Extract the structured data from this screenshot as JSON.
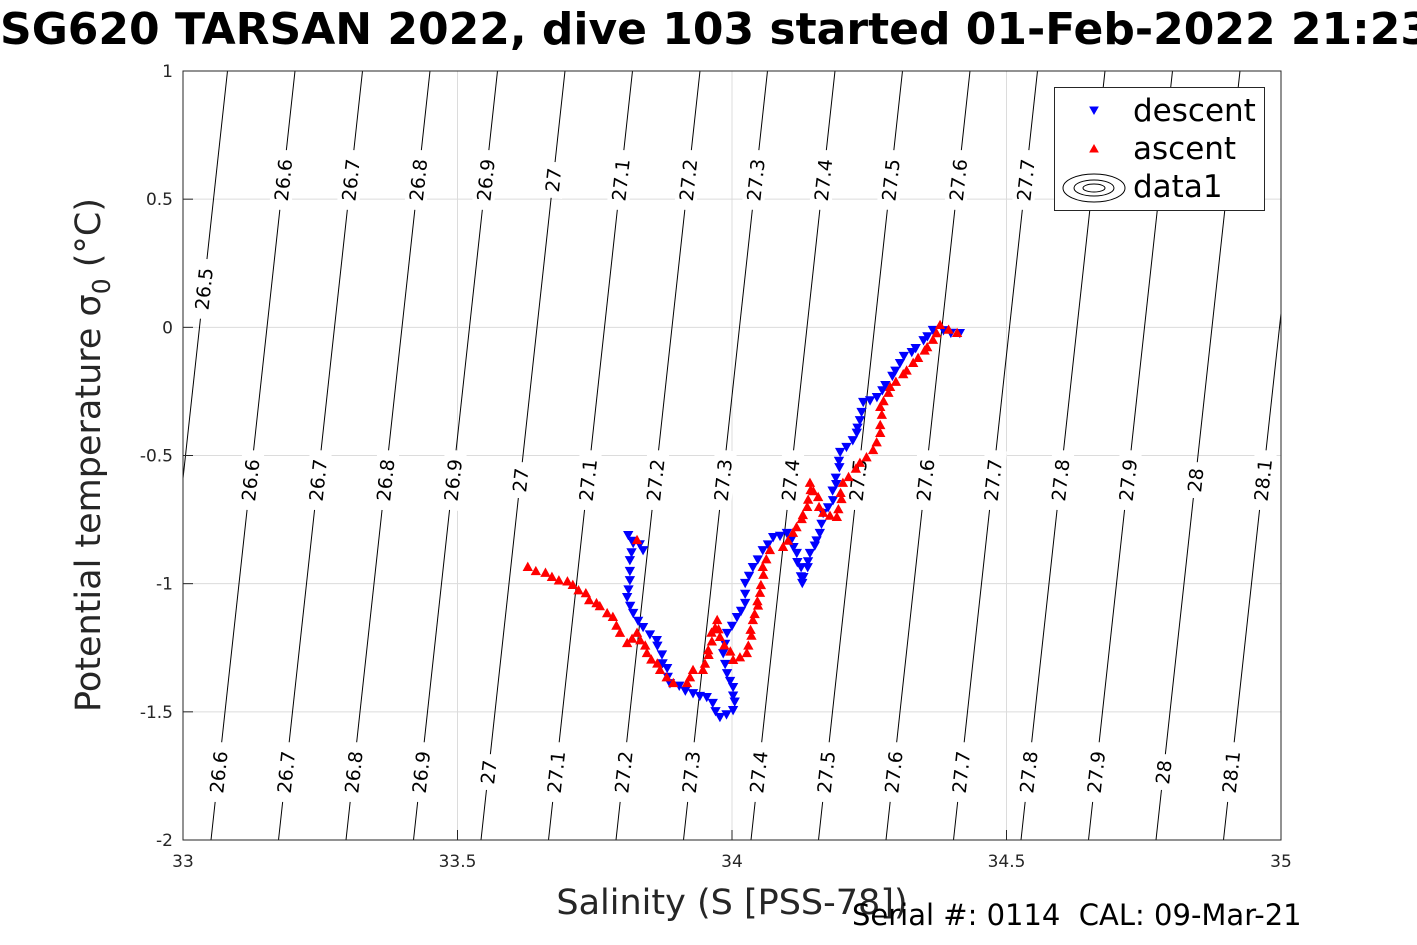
{
  "title": "SG620 TARSAN 2022, dive 103 started 01-Feb-2022 21:23",
  "footer": "Serial #: 0114  CAL: 09-Mar-21",
  "chart_data": {
    "type": "scatter",
    "title": "SG620 TARSAN 2022, dive 103 started 01-Feb-2022 21:23",
    "xlabel": "Salinity (S [PSS-78])",
    "ylabel_main": "Potential temperature ",
    "ylabel_sigma": "σ",
    "ylabel_sub": "0",
    "ylabel_unit": " (°C)",
    "xlim": [
      33,
      35
    ],
    "ylim": [
      -2,
      1
    ],
    "xticks": [
      33,
      33.5,
      34,
      34.5,
      35
    ],
    "xtick_labels": [
      "33",
      "33.5",
      "34",
      "34.5",
      "35"
    ],
    "yticks": [
      -2,
      -1.5,
      -1,
      -0.5,
      0,
      0.5,
      1
    ],
    "ytick_labels": [
      "-2",
      "-1.5",
      "-1",
      "-0.5",
      "0",
      "0.5",
      "1"
    ],
    "grid": true,
    "legend": {
      "placement": "top-right",
      "entries": [
        {
          "label": "descent",
          "color": "#0000ff",
          "marker": "triangle-down"
        },
        {
          "label": "ascent",
          "color": "#ff0000",
          "marker": "triangle-up"
        },
        {
          "label": "data1",
          "color": "#000000",
          "marker": "contour"
        }
      ]
    },
    "contours": {
      "name": "sigma0 isopycnals",
      "levels": [
        26.5,
        26.6,
        26.7,
        26.8,
        26.9,
        27,
        27.1,
        27.2,
        27.3,
        27.4,
        27.5,
        27.6,
        27.7,
        27.8,
        27.9,
        28,
        28.1
      ],
      "level_labels": [
        "26.5",
        "26.6",
        "26.7",
        "26.8",
        "26.9",
        "27",
        "27.1",
        "27.2",
        "27.3",
        "27.4",
        "27.5",
        "27.6",
        "27.7",
        "27.8",
        "27.9",
        "28",
        "28.1"
      ],
      "label_rows": [
        {
          "temperature": 0.575,
          "levels": [
            "26.6",
            "26.7",
            "26.8",
            "26.9",
            "27",
            "27.1",
            "27.2",
            "27.3",
            "27.4",
            "27.5",
            "27.6",
            "27.7"
          ]
        },
        {
          "temperature": 0.15,
          "levels": [
            "26.5"
          ]
        },
        {
          "temperature": -0.596,
          "levels": [
            "26.6",
            "26.7",
            "26.8",
            "26.9",
            "27",
            "27.1",
            "27.2",
            "27.3",
            "27.4",
            "27.5",
            "27.6",
            "27.7",
            "27.8",
            "27.9",
            "28",
            "28.1"
          ]
        },
        {
          "temperature": -1.735,
          "levels": [
            "26.6",
            "26.7",
            "26.8",
            "26.9",
            "27",
            "27.1",
            "27.2",
            "27.3",
            "27.4",
            "27.5",
            "27.6",
            "27.7",
            "27.8",
            "27.9",
            "28",
            "28.1"
          ]
        }
      ]
    },
    "series": [
      {
        "name": "descent",
        "color": "#0000ff",
        "marker": "triangle-down",
        "points": [
          [
            34.415,
            -0.022
          ],
          [
            34.366,
            -0.01
          ],
          [
            34.306,
            -0.139
          ],
          [
            34.264,
            -0.272
          ],
          [
            34.239,
            -0.291
          ],
          [
            34.233,
            -0.362
          ],
          [
            34.22,
            -0.44
          ],
          [
            34.197,
            -0.486
          ],
          [
            34.184,
            -0.674
          ],
          [
            34.166,
            -0.724
          ],
          [
            34.16,
            -0.802
          ],
          [
            34.142,
            -0.88
          ],
          [
            34.128,
            -0.997
          ],
          [
            34.118,
            -0.88
          ],
          [
            34.1,
            -0.802
          ],
          [
            34.075,
            -0.818
          ],
          [
            34.056,
            -0.869
          ],
          [
            34.038,
            -0.935
          ],
          [
            34.024,
            -0.997
          ],
          [
            34.024,
            -1.075
          ],
          [
            34.009,
            -1.13
          ],
          [
            33.991,
            -1.192
          ],
          [
            33.984,
            -1.271
          ],
          [
            33.991,
            -1.349
          ],
          [
            34.002,
            -1.403
          ],
          [
            34.002,
            -1.493
          ],
          [
            33.978,
            -1.52
          ],
          [
            33.954,
            -1.442
          ],
          [
            33.929,
            -1.427
          ],
          [
            33.887,
            -1.388
          ],
          [
            33.863,
            -1.22
          ],
          [
            33.838,
            -1.169
          ],
          [
            33.82,
            -1.114
          ],
          [
            33.809,
            -1.052
          ],
          [
            33.814,
            -0.986
          ],
          [
            33.814,
            -0.908
          ],
          [
            33.82,
            -0.841
          ],
          [
            33.811,
            -0.81
          ],
          [
            33.838,
            -0.869
          ]
        ]
      },
      {
        "name": "ascent",
        "color": "#ff0000",
        "marker": "triangle-up",
        "points": [
          [
            33.628,
            -0.935
          ],
          [
            33.672,
            -0.974
          ],
          [
            33.71,
            -1.005
          ],
          [
            33.783,
            -1.13
          ],
          [
            33.796,
            -1.192
          ],
          [
            33.809,
            -1.232
          ],
          [
            33.827,
            -1.192
          ],
          [
            33.845,
            -1.271
          ],
          [
            33.869,
            -1.337
          ],
          [
            33.893,
            -1.388
          ],
          [
            33.918,
            -1.388
          ],
          [
            33.929,
            -1.337
          ],
          [
            33.947,
            -1.337
          ],
          [
            33.973,
            -1.142
          ],
          [
            33.978,
            -1.208
          ],
          [
            34.002,
            -1.298
          ],
          [
            34.027,
            -1.271
          ],
          [
            34.038,
            -1.142
          ],
          [
            34.051,
            -1.036
          ],
          [
            34.056,
            -0.935
          ],
          [
            34.069,
            -0.869
          ],
          [
            34.093,
            -0.857
          ],
          [
            34.111,
            -0.802
          ],
          [
            34.137,
            -0.701
          ],
          [
            34.142,
            -0.607
          ],
          [
            34.166,
            -0.724
          ],
          [
            34.191,
            -0.74
          ],
          [
            34.202,
            -0.607
          ],
          [
            34.233,
            -0.529
          ],
          [
            34.257,
            -0.479
          ],
          [
            34.27,
            -0.412
          ],
          [
            34.27,
            -0.311
          ],
          [
            34.288,
            -0.233
          ],
          [
            34.33,
            -0.139
          ],
          [
            34.366,
            -0.049
          ],
          [
            34.379,
            0.009
          ],
          [
            34.41,
            -0.022
          ],
          [
            33.827,
            -0.83
          ]
        ]
      }
    ]
  }
}
